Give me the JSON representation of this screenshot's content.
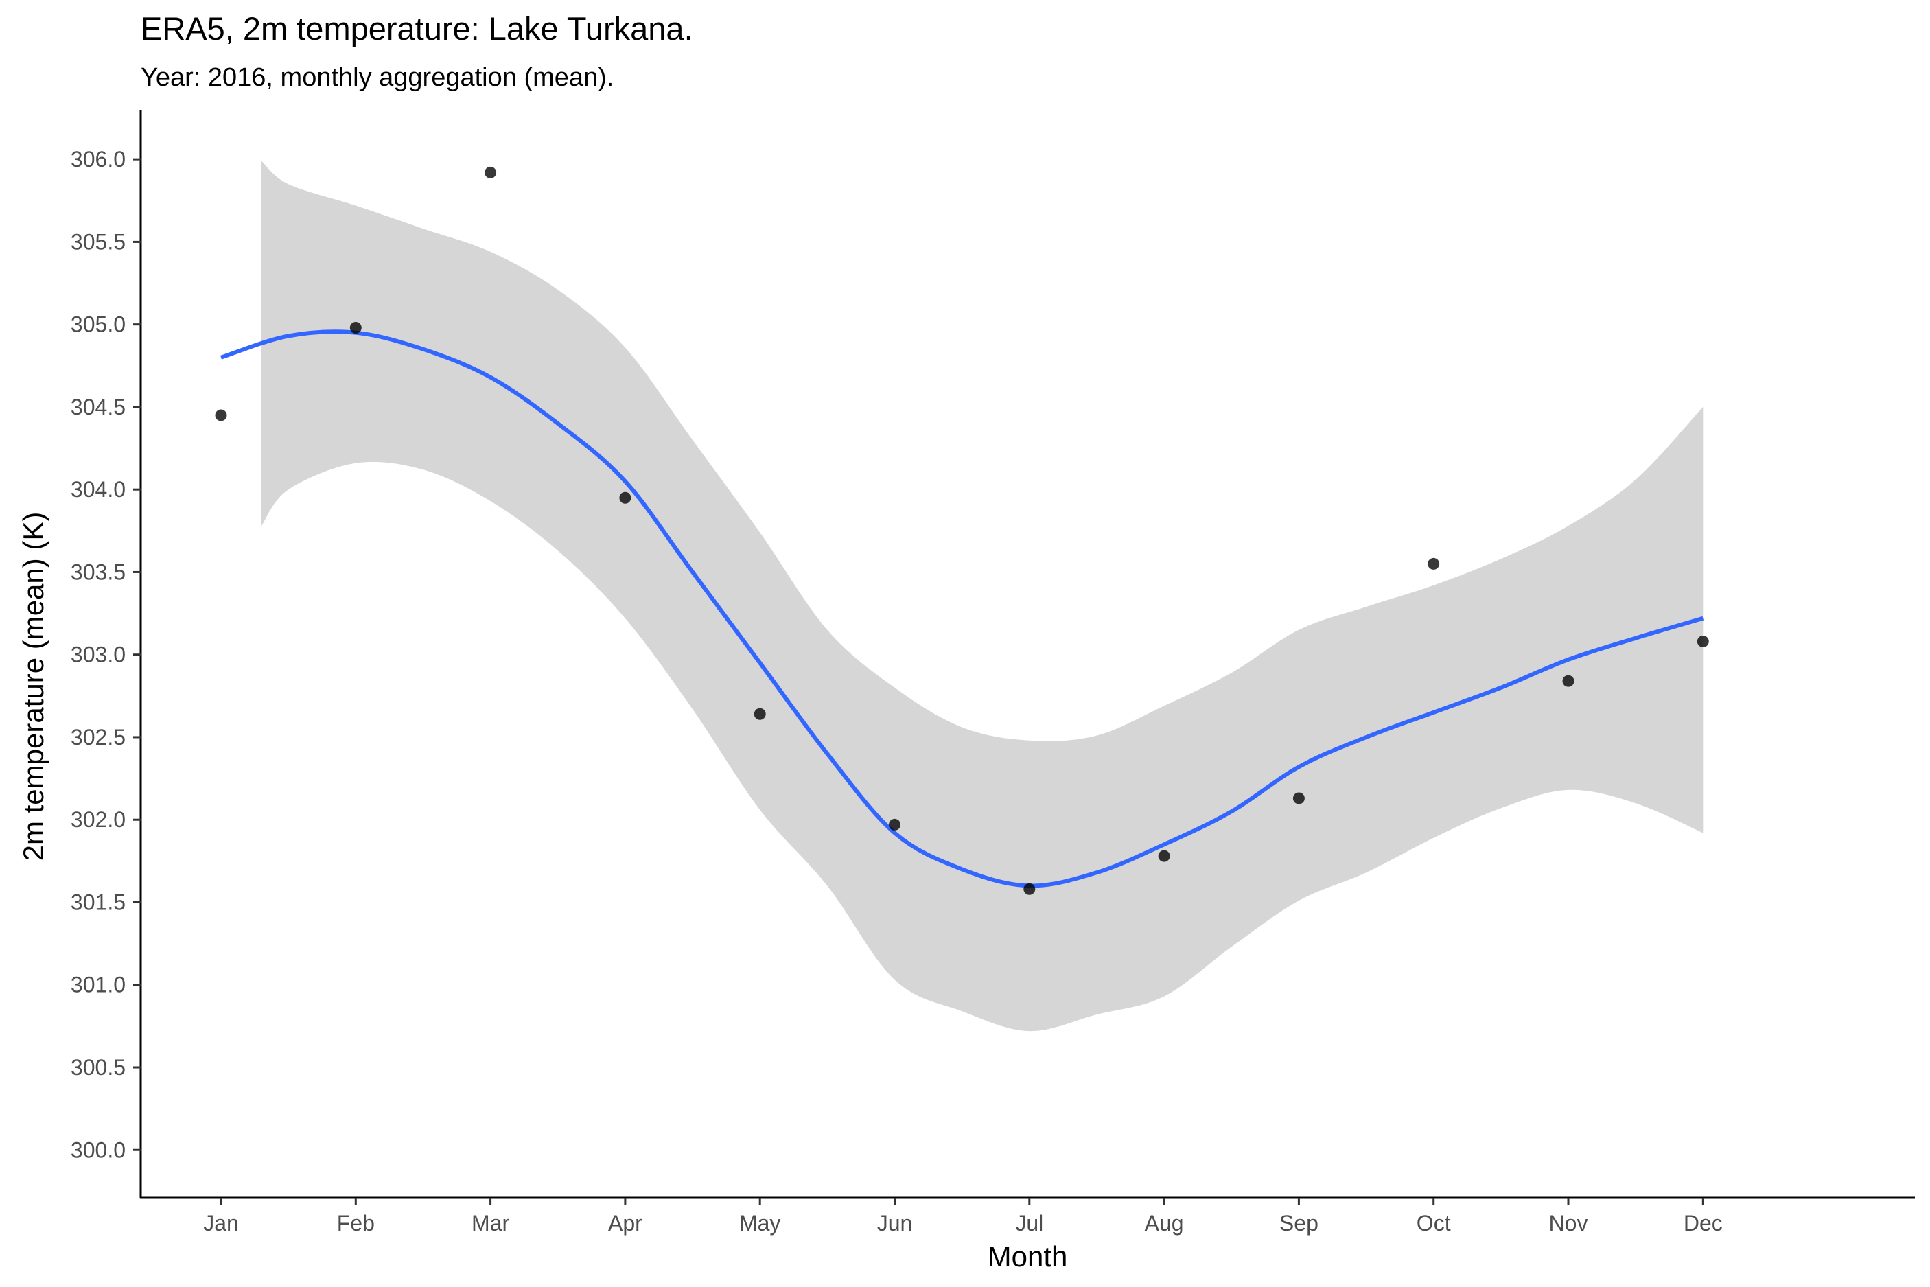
{
  "chart_data": {
    "type": "scatter",
    "title": "ERA5, 2m temperature: Lake Turkana.",
    "subtitle": "Year: 2016, monthly aggregation (mean).",
    "xlabel": "Month",
    "ylabel": "2m temperature (mean) (K)",
    "categories": [
      "Jan",
      "Feb",
      "Mar",
      "Apr",
      "May",
      "Jun",
      "Jul",
      "Aug",
      "Sep",
      "Oct",
      "Nov",
      "Dec"
    ],
    "ylim": [
      299.71,
      306.3
    ],
    "yticks": [
      "300.0",
      "300.5",
      "301.0",
      "301.5",
      "302.0",
      "302.5",
      "303.0",
      "303.5",
      "304.0",
      "304.5",
      "305.0",
      "305.5",
      "306.0"
    ],
    "grid": false,
    "series": [
      {
        "kind": "points",
        "values": [
          304.45,
          304.98,
          305.92,
          303.95,
          302.64,
          301.97,
          301.58,
          301.78,
          302.13,
          303.55,
          302.84,
          303.08
        ]
      },
      {
        "kind": "smooth",
        "x": [
          1,
          1.5,
          2,
          2.5,
          3,
          3.5,
          4,
          4.5,
          5,
          5.5,
          6,
          6.5,
          7,
          7.5,
          8,
          8.5,
          9,
          9.5,
          10,
          10.5,
          11,
          11.5,
          12
        ],
        "values": [
          304.8,
          304.93,
          304.95,
          304.85,
          304.68,
          304.4,
          304.05,
          303.5,
          302.95,
          302.4,
          301.92,
          301.7,
          301.6,
          301.68,
          301.85,
          302.05,
          302.32,
          302.5,
          302.65,
          302.8,
          302.97,
          303.1,
          303.22
        ],
        "color": "#3366FF"
      },
      {
        "kind": "confidence-band",
        "x": [
          1.3,
          1.5,
          2,
          2.5,
          3,
          3.5,
          4,
          4.5,
          5,
          5.5,
          6,
          6.5,
          7,
          7.5,
          8,
          8.5,
          9,
          9.5,
          10,
          10.5,
          11,
          11.5,
          12
        ],
        "upper": [
          305.99,
          305.85,
          305.72,
          305.58,
          305.44,
          305.21,
          304.86,
          304.3,
          303.74,
          303.15,
          302.8,
          302.56,
          302.48,
          302.51,
          302.69,
          302.89,
          303.15,
          303.29,
          303.42,
          303.58,
          303.78,
          304.06,
          304.5
        ],
        "lower": [
          303.78,
          304.0,
          304.16,
          304.12,
          303.93,
          303.63,
          303.22,
          302.67,
          302.06,
          301.6,
          301.03,
          300.84,
          300.72,
          300.82,
          300.93,
          301.23,
          301.51,
          301.68,
          301.89,
          302.07,
          302.18,
          302.1,
          301.92
        ],
        "color": "#d6d6d6"
      }
    ]
  }
}
